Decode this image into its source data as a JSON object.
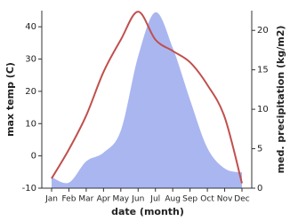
{
  "chart_data": {
    "type": "line_area",
    "xlabel": "date (month)",
    "ylabel": "max temp (C)",
    "y2label": "med. precipitation (kg/m2)",
    "categories": [
      "Jan",
      "Feb",
      "Mar",
      "Apr",
      "May",
      "Jun",
      "Jul",
      "Aug",
      "Sep",
      "Oct",
      "Nov",
      "Dec"
    ],
    "series": [
      {
        "name": "max temp",
        "color": "#c0504d",
        "axis": "y",
        "values": [
          -7,
          2,
          12.5,
          26,
          36,
          44.7,
          36,
          32.5,
          29,
          22,
          12,
          -8.5
        ]
      },
      {
        "name": "med. precipitation",
        "color": "#aab6f0",
        "axis": "y2",
        "values": [
          1.4,
          0.7,
          3.4,
          4.5,
          7.3,
          16.7,
          22.3,
          17.8,
          11.2,
          5.1,
          2.5,
          2
        ]
      }
    ],
    "ylim": [
      -10,
      45
    ],
    "yticks": [
      -10,
      0,
      10,
      20,
      30,
      40
    ],
    "y2lim": [
      0,
      22.5
    ],
    "y2ticks": [
      0,
      5,
      10,
      15,
      20
    ]
  }
}
